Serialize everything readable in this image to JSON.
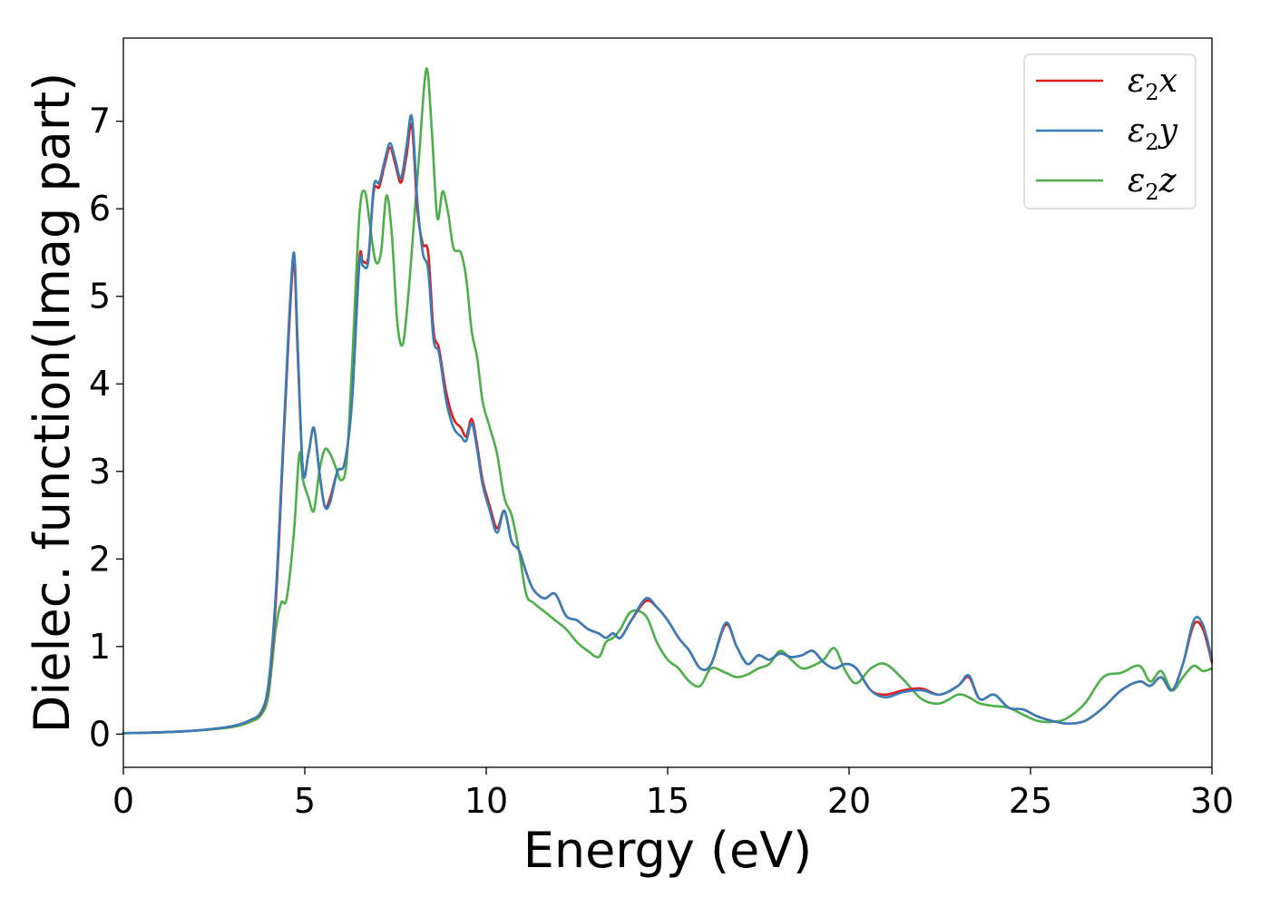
{
  "chart_data": {
    "type": "line",
    "xlabel": "Energy (eV)",
    "ylabel": "Dielec. function(Imag part)",
    "xlim": [
      0,
      30
    ],
    "ylim": [
      -0.38,
      7.95
    ],
    "xticks": [
      "0",
      "5",
      "10",
      "15",
      "20",
      "25",
      "30"
    ],
    "yticks": [
      "0",
      "1",
      "2",
      "3",
      "4",
      "5",
      "6",
      "7"
    ],
    "grid": false,
    "legend_position": "top-right",
    "series": [
      {
        "name": "ε2x",
        "legend": {
          "base": "ε",
          "sub": "2",
          "suffix": "x"
        },
        "color": "#e41a1c",
        "x": [
          0,
          1,
          2,
          3,
          3.5,
          3.8,
          4.0,
          4.2,
          4.4,
          4.55,
          4.7,
          4.8,
          4.95,
          5.1,
          5.25,
          5.4,
          5.55,
          5.7,
          5.9,
          6.1,
          6.3,
          6.5,
          6.6,
          6.75,
          6.9,
          7.05,
          7.2,
          7.35,
          7.5,
          7.65,
          7.8,
          7.95,
          8.1,
          8.25,
          8.4,
          8.55,
          8.7,
          8.9,
          9.1,
          9.3,
          9.45,
          9.6,
          9.75,
          9.9,
          10.1,
          10.3,
          10.5,
          10.7,
          10.9,
          11.1,
          11.3,
          11.6,
          11.9,
          12.2,
          12.5,
          12.8,
          13.1,
          13.3,
          13.5,
          13.7,
          14.0,
          14.4,
          14.7,
          15.0,
          15.3,
          15.6,
          15.9,
          16.2,
          16.6,
          16.9,
          17.2,
          17.5,
          17.8,
          18.1,
          18.4,
          18.7,
          19.0,
          19.3,
          19.6,
          19.9,
          20.2,
          20.6,
          21.0,
          21.5,
          22.0,
          22.5,
          23.0,
          23.3,
          23.6,
          24.0,
          24.4,
          24.8,
          25.2,
          25.6,
          26.0,
          26.5,
          27.0,
          27.5,
          28.0,
          28.3,
          28.6,
          28.9,
          29.2,
          29.5,
          29.75,
          30.0
        ],
        "y": [
          0.01,
          0.02,
          0.04,
          0.09,
          0.16,
          0.25,
          0.55,
          1.5,
          3.2,
          4.5,
          5.4,
          4.4,
          3.0,
          3.2,
          3.5,
          3.0,
          2.6,
          2.7,
          3.0,
          3.1,
          3.8,
          5.4,
          5.4,
          5.45,
          6.2,
          6.25,
          6.5,
          6.7,
          6.5,
          6.3,
          6.6,
          6.95,
          6.0,
          5.6,
          5.5,
          4.6,
          4.4,
          3.9,
          3.6,
          3.5,
          3.4,
          3.6,
          3.3,
          2.9,
          2.6,
          2.35,
          2.55,
          2.2,
          2.1,
          1.85,
          1.65,
          1.55,
          1.6,
          1.35,
          1.3,
          1.2,
          1.15,
          1.1,
          1.15,
          1.1,
          1.3,
          1.52,
          1.45,
          1.3,
          1.1,
          0.95,
          0.75,
          0.8,
          1.25,
          1.0,
          0.8,
          0.9,
          0.85,
          0.92,
          0.88,
          0.9,
          0.95,
          0.82,
          0.75,
          0.8,
          0.75,
          0.5,
          0.45,
          0.5,
          0.52,
          0.45,
          0.55,
          0.65,
          0.4,
          0.45,
          0.3,
          0.28,
          0.2,
          0.15,
          0.12,
          0.15,
          0.3,
          0.5,
          0.6,
          0.55,
          0.65,
          0.5,
          0.8,
          1.25,
          1.2,
          0.82
        ]
      },
      {
        "name": "ε2y",
        "legend": {
          "base": "ε",
          "sub": "2",
          "suffix": "y"
        },
        "color": "#377eb8",
        "x": [
          0,
          1,
          2,
          3,
          3.5,
          3.8,
          4.0,
          4.2,
          4.4,
          4.55,
          4.7,
          4.8,
          4.95,
          5.1,
          5.25,
          5.4,
          5.55,
          5.7,
          5.9,
          6.1,
          6.3,
          6.5,
          6.6,
          6.75,
          6.9,
          7.05,
          7.2,
          7.35,
          7.5,
          7.65,
          7.8,
          7.95,
          8.1,
          8.25,
          8.4,
          8.55,
          8.7,
          8.9,
          9.1,
          9.3,
          9.45,
          9.6,
          9.75,
          9.9,
          10.1,
          10.3,
          10.5,
          10.7,
          10.9,
          11.1,
          11.3,
          11.6,
          11.9,
          12.2,
          12.5,
          12.8,
          13.1,
          13.3,
          13.5,
          13.7,
          14.0,
          14.4,
          14.7,
          15.0,
          15.3,
          15.6,
          15.9,
          16.2,
          16.6,
          16.9,
          17.2,
          17.5,
          17.8,
          18.1,
          18.4,
          18.7,
          19.0,
          19.3,
          19.6,
          19.9,
          20.2,
          20.6,
          21.0,
          21.5,
          22.0,
          22.5,
          23.0,
          23.3,
          23.6,
          24.0,
          24.4,
          24.8,
          25.2,
          25.6,
          26.0,
          26.5,
          27.0,
          27.5,
          28.0,
          28.3,
          28.6,
          28.9,
          29.2,
          29.5,
          29.75,
          30.0
        ],
        "y": [
          0.01,
          0.02,
          0.04,
          0.09,
          0.16,
          0.26,
          0.58,
          1.6,
          3.3,
          4.6,
          5.5,
          4.5,
          3.0,
          3.2,
          3.5,
          3.0,
          2.6,
          2.65,
          3.0,
          3.1,
          3.8,
          5.35,
          5.35,
          5.4,
          6.25,
          6.3,
          6.55,
          6.75,
          6.55,
          6.35,
          6.7,
          7.05,
          6.1,
          5.5,
          5.3,
          4.5,
          4.35,
          3.8,
          3.5,
          3.4,
          3.35,
          3.55,
          3.25,
          2.85,
          2.55,
          2.3,
          2.55,
          2.2,
          2.1,
          1.85,
          1.65,
          1.55,
          1.6,
          1.35,
          1.3,
          1.2,
          1.15,
          1.1,
          1.15,
          1.1,
          1.3,
          1.55,
          1.45,
          1.3,
          1.1,
          0.95,
          0.75,
          0.8,
          1.27,
          1.0,
          0.8,
          0.9,
          0.85,
          0.92,
          0.88,
          0.9,
          0.95,
          0.82,
          0.75,
          0.8,
          0.75,
          0.5,
          0.42,
          0.48,
          0.5,
          0.45,
          0.55,
          0.67,
          0.4,
          0.45,
          0.3,
          0.28,
          0.2,
          0.15,
          0.12,
          0.15,
          0.3,
          0.5,
          0.6,
          0.55,
          0.65,
          0.5,
          0.8,
          1.3,
          1.25,
          0.85
        ]
      },
      {
        "name": "ε2z",
        "legend": {
          "base": "ε",
          "sub": "2",
          "suffix": "z"
        },
        "color": "#4daf4a",
        "x": [
          0,
          1,
          2,
          3,
          3.5,
          3.8,
          4.0,
          4.2,
          4.35,
          4.5,
          4.7,
          4.85,
          4.95,
          5.1,
          5.25,
          5.4,
          5.55,
          5.7,
          5.85,
          6.0,
          6.15,
          6.3,
          6.5,
          6.65,
          6.8,
          6.95,
          7.1,
          7.25,
          7.4,
          7.55,
          7.7,
          7.85,
          8.0,
          8.15,
          8.35,
          8.5,
          8.65,
          8.8,
          8.95,
          9.1,
          9.3,
          9.45,
          9.6,
          9.75,
          9.9,
          10.1,
          10.3,
          10.5,
          10.7,
          10.9,
          11.1,
          11.3,
          11.6,
          11.9,
          12.2,
          12.5,
          12.8,
          13.1,
          13.3,
          13.5,
          13.7,
          14.0,
          14.4,
          14.7,
          15.0,
          15.3,
          15.6,
          15.9,
          16.2,
          16.6,
          16.9,
          17.2,
          17.5,
          17.8,
          18.1,
          18.4,
          18.7,
          19.0,
          19.3,
          19.6,
          19.9,
          20.2,
          20.6,
          21.0,
          21.5,
          22.0,
          22.5,
          23.0,
          23.3,
          23.6,
          24.0,
          24.4,
          24.8,
          25.2,
          25.6,
          26.0,
          26.5,
          27.0,
          27.5,
          28.0,
          28.3,
          28.6,
          28.9,
          29.2,
          29.5,
          29.75,
          30.0
        ],
        "y": [
          0.01,
          0.02,
          0.04,
          0.08,
          0.14,
          0.22,
          0.45,
          1.2,
          1.5,
          1.55,
          2.3,
          3.2,
          2.9,
          2.7,
          2.55,
          3.0,
          3.25,
          3.2,
          3.05,
          2.9,
          3.1,
          4.2,
          5.9,
          6.2,
          5.8,
          5.4,
          5.5,
          6.15,
          5.7,
          4.7,
          4.45,
          5.0,
          5.8,
          6.6,
          7.6,
          6.9,
          5.9,
          6.2,
          5.95,
          5.55,
          5.5,
          5.2,
          4.6,
          4.3,
          3.8,
          3.5,
          3.2,
          2.7,
          2.5,
          2.1,
          1.6,
          1.5,
          1.4,
          1.3,
          1.2,
          1.05,
          0.95,
          0.88,
          1.05,
          1.1,
          1.2,
          1.4,
          1.35,
          1.05,
          0.85,
          0.75,
          0.6,
          0.55,
          0.75,
          0.7,
          0.65,
          0.68,
          0.75,
          0.8,
          0.95,
          0.85,
          0.75,
          0.78,
          0.85,
          0.98,
          0.72,
          0.58,
          0.75,
          0.8,
          0.62,
          0.4,
          0.35,
          0.45,
          0.42,
          0.35,
          0.32,
          0.3,
          0.22,
          0.15,
          0.14,
          0.18,
          0.35,
          0.65,
          0.7,
          0.78,
          0.6,
          0.72,
          0.5,
          0.65,
          0.78,
          0.72,
          0.75
        ]
      }
    ]
  }
}
